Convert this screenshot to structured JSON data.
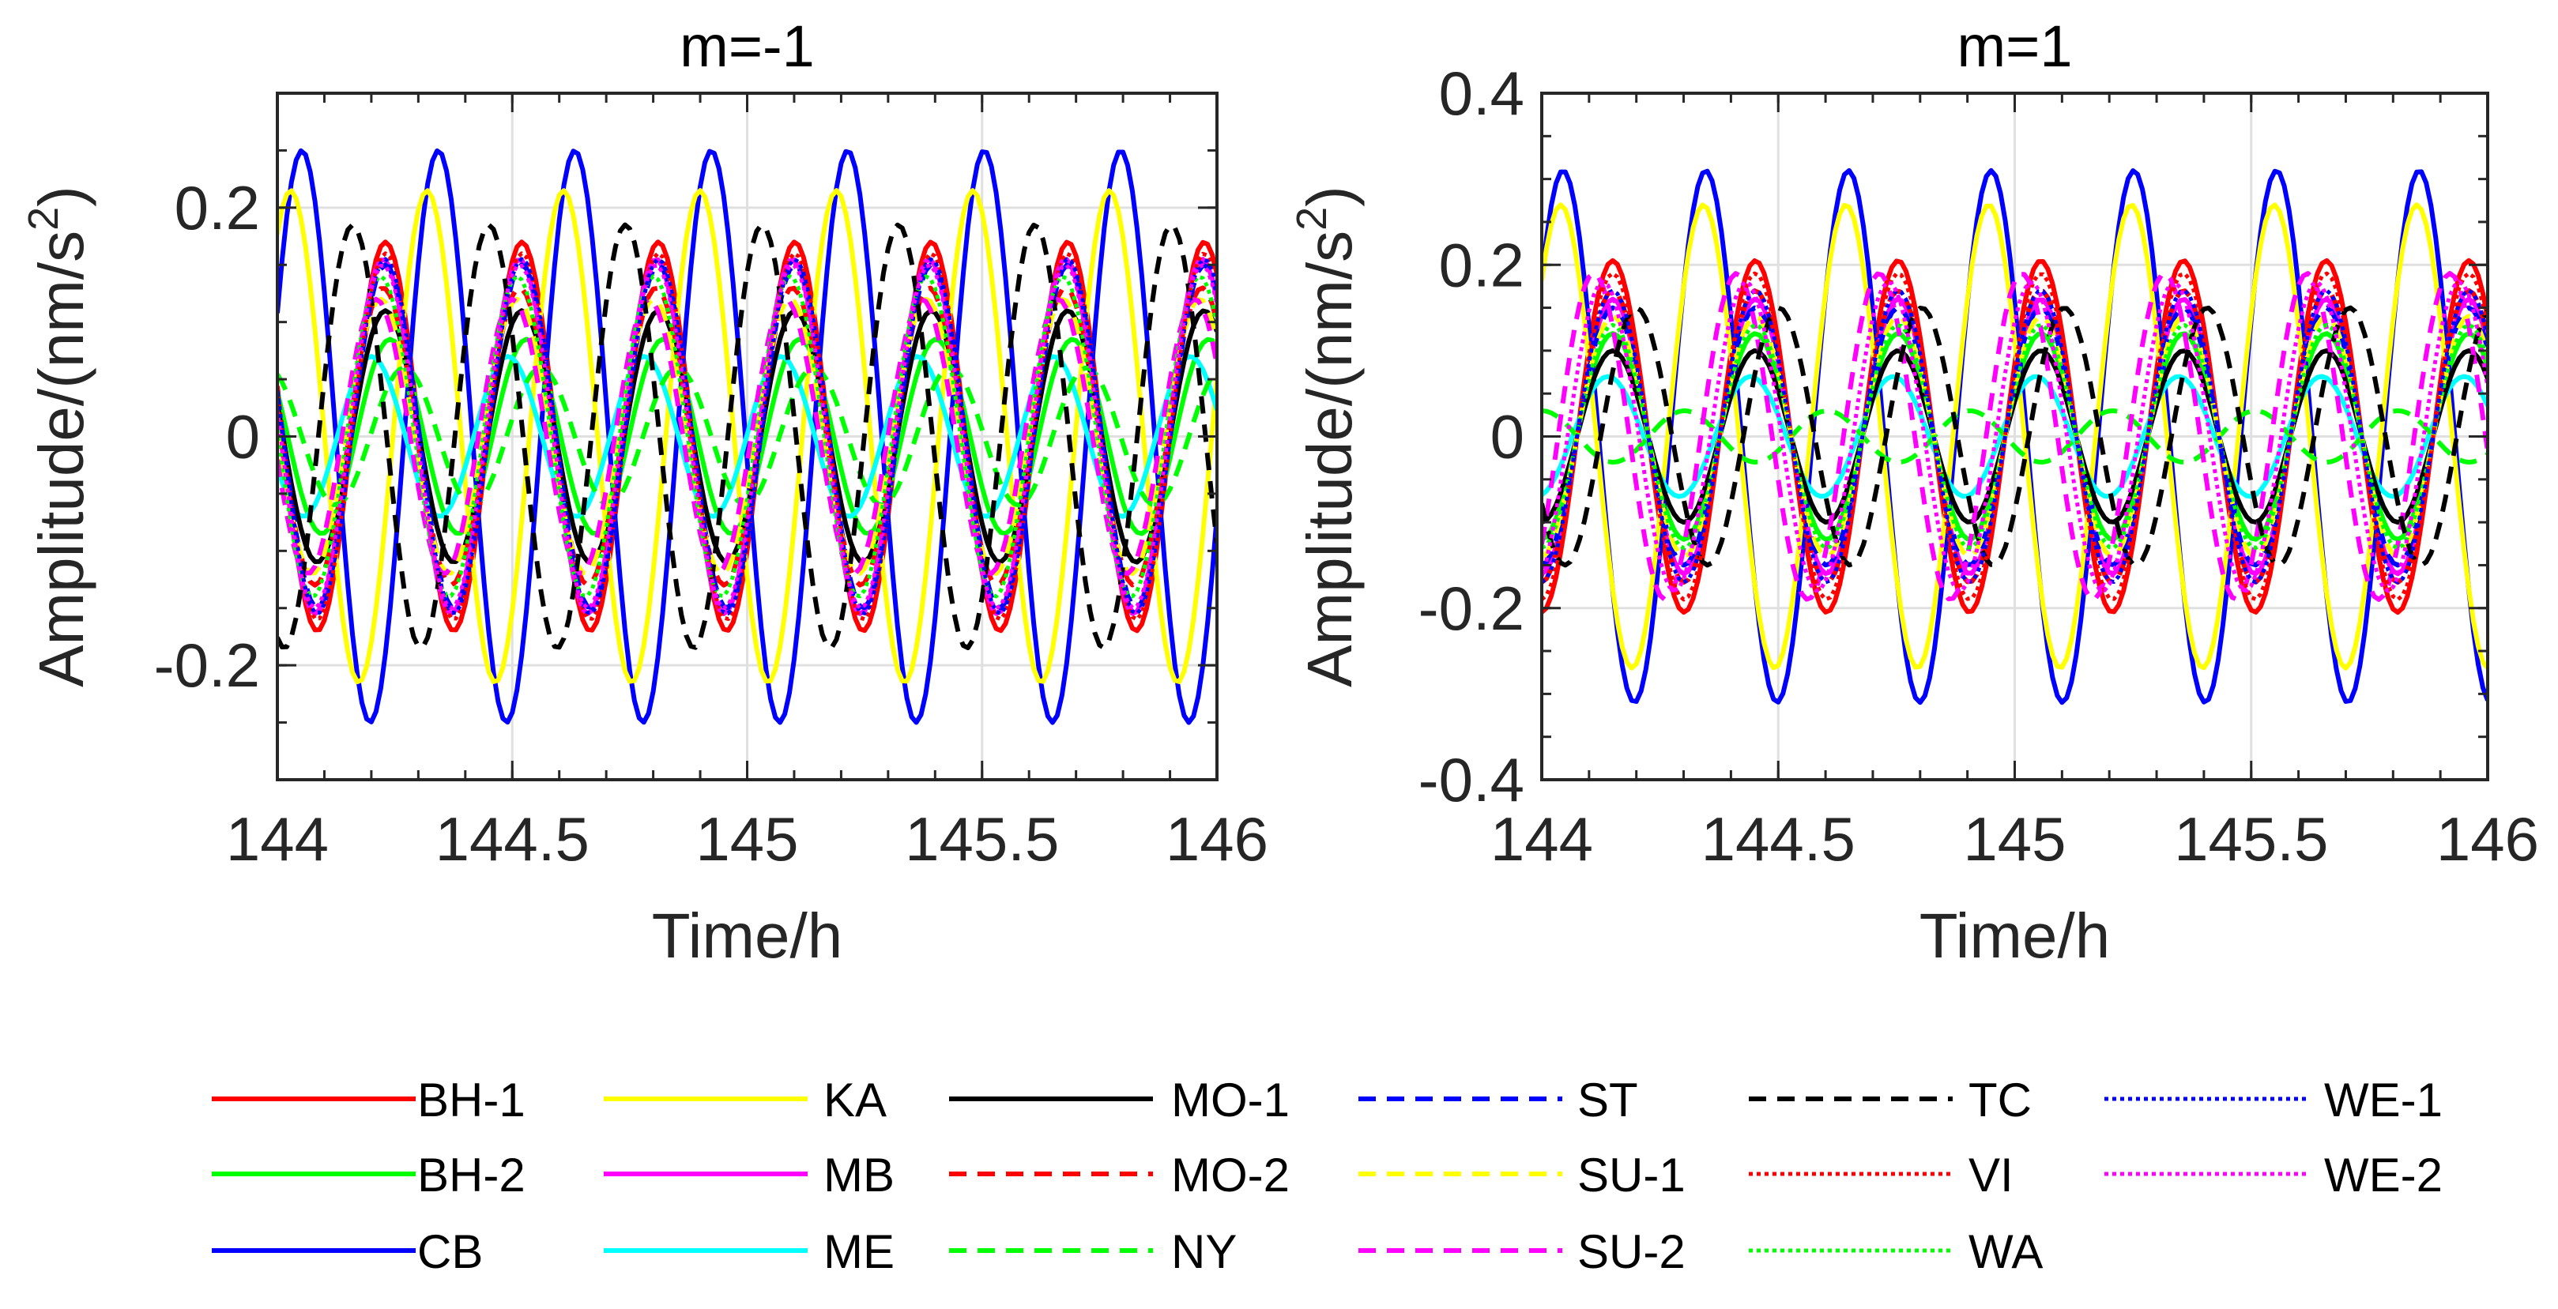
{
  "chart_data": [
    {
      "type": "line",
      "title": "m=-1",
      "xlabel": "Time/h",
      "ylabel": "Amplitude/(nm/s",
      "ylabel_sup": "2",
      "ylabel_end": ")",
      "xlim": [
        144,
        146
      ],
      "ylim": [
        -0.3,
        0.3
      ],
      "xticks": [
        144,
        144.5,
        145,
        145.5,
        146
      ],
      "xtick_labels": [
        "144",
        "144.5",
        "145",
        "145.5",
        "146"
      ],
      "yticks": [
        -0.2,
        0,
        0.2
      ],
      "ytick_labels": [
        "-0.2",
        "0",
        "0.2"
      ],
      "grid": true,
      "period_h": 0.2905,
      "series": [
        {
          "name": "BH-1",
          "amplitude": 0.17,
          "peak_time": 144.23
        },
        {
          "name": "BH-2",
          "amplitude": 0.085,
          "peak_time": 144.24
        },
        {
          "name": "CB",
          "amplitude": 0.25,
          "peak_time": 144.052
        },
        {
          "name": "KA",
          "amplitude": 0.215,
          "peak_time": 144.028
        },
        {
          "name": "MB",
          "amplitude": 0.155,
          "peak_time": 144.225
        },
        {
          "name": "ME",
          "amplitude": 0.07,
          "peak_time": 144.2
        },
        {
          "name": "MO-1",
          "amplitude": 0.11,
          "peak_time": 144.23
        },
        {
          "name": "MO-2",
          "amplitude": 0.13,
          "peak_time": 144.225
        },
        {
          "name": "NY",
          "amplitude": 0.06,
          "peak_time": 144.27
        },
        {
          "name": "ST",
          "amplitude": 0.15,
          "peak_time": 144.23
        },
        {
          "name": "SU-1",
          "amplitude": 0.12,
          "peak_time": 144.22
        },
        {
          "name": "SU-2",
          "amplitude": 0.12,
          "peak_time": 144.21
        },
        {
          "name": "TC",
          "amplitude": 0.185,
          "peak_time": 144.16
        },
        {
          "name": "VI",
          "amplitude": 0.16,
          "peak_time": 144.23
        },
        {
          "name": "WA",
          "amplitude": 0.14,
          "peak_time": 144.22
        },
        {
          "name": "WE-1",
          "amplitude": 0.155,
          "peak_time": 144.23
        },
        {
          "name": "WE-2",
          "amplitude": 0.15,
          "peak_time": 144.225
        }
      ]
    },
    {
      "type": "line",
      "title": "m=1",
      "xlabel": "Time/h",
      "ylabel": "Amplitude/(nm/s",
      "ylabel_sup": "2",
      "ylabel_end": ")",
      "xlim": [
        144,
        146
      ],
      "ylim": [
        -0.4,
        0.4
      ],
      "xticks": [
        144,
        144.5,
        145,
        145.5,
        146
      ],
      "xtick_labels": [
        "144",
        "144.5",
        "145",
        "145.5",
        "146"
      ],
      "yticks": [
        -0.4,
        -0.2,
        0,
        0.2,
        0.4
      ],
      "ytick_labels": [
        "-0.4",
        "-0.2",
        "0",
        "0.2",
        "0.4"
      ],
      "grid": true,
      "period_h": 0.3017,
      "series": [
        {
          "name": "BH-1",
          "amplitude": 0.205,
          "peak_time": 144.15
        },
        {
          "name": "BH-2",
          "amplitude": 0.12,
          "peak_time": 144.15
        },
        {
          "name": "CB",
          "amplitude": 0.31,
          "peak_time": 144.045
        },
        {
          "name": "KA",
          "amplitude": 0.27,
          "peak_time": 144.04
        },
        {
          "name": "MB",
          "amplitude": 0.16,
          "peak_time": 144.15
        },
        {
          "name": "ME",
          "amplitude": 0.07,
          "peak_time": 144.14
        },
        {
          "name": "MO-1",
          "amplitude": 0.1,
          "peak_time": 144.15
        },
        {
          "name": "MO-2",
          "amplitude": 0.17,
          "peak_time": 144.15
        },
        {
          "name": "NY",
          "amplitude": 0.03,
          "peak_time": 144.0
        },
        {
          "name": "ST",
          "amplitude": 0.15,
          "peak_time": 144.15
        },
        {
          "name": "SU-1",
          "amplitude": 0.14,
          "peak_time": 144.15
        },
        {
          "name": "SU-2",
          "amplitude": 0.19,
          "peak_time": 144.11
        },
        {
          "name": "TC",
          "amplitude": 0.15,
          "peak_time": 144.2
        },
        {
          "name": "VI",
          "amplitude": 0.19,
          "peak_time": 144.15
        },
        {
          "name": "WA",
          "amplitude": 0.13,
          "peak_time": 144.15
        },
        {
          "name": "WE-1",
          "amplitude": 0.17,
          "peak_time": 144.15
        },
        {
          "name": "WE-2",
          "amplitude": 0.18,
          "peak_time": 144.13
        }
      ]
    }
  ],
  "legend": {
    "placement": "bottom",
    "entries": [
      {
        "name": "BH-1",
        "color": "#ff0000",
        "style": "solid"
      },
      {
        "name": "BH-2",
        "color": "#00ff00",
        "style": "solid"
      },
      {
        "name": "CB",
        "color": "#0000ff",
        "style": "solid"
      },
      {
        "name": "KA",
        "color": "#ffff00",
        "style": "solid"
      },
      {
        "name": "MB",
        "color": "#ff00ff",
        "style": "solid"
      },
      {
        "name": "ME",
        "color": "#00ffff",
        "style": "solid"
      },
      {
        "name": "MO-1",
        "color": "#000000",
        "style": "solid"
      },
      {
        "name": "MO-2",
        "color": "#ff0000",
        "style": "dashed"
      },
      {
        "name": "NY",
        "color": "#00ff00",
        "style": "dashed"
      },
      {
        "name": "ST",
        "color": "#0000ff",
        "style": "dashed"
      },
      {
        "name": "SU-1",
        "color": "#ffff00",
        "style": "dashed"
      },
      {
        "name": "SU-2",
        "color": "#ff00ff",
        "style": "dashed"
      },
      {
        "name": "TC",
        "color": "#000000",
        "style": "dashed"
      },
      {
        "name": "VI",
        "color": "#ff0000",
        "style": "dotted"
      },
      {
        "name": "WA",
        "color": "#00ff00",
        "style": "dotted"
      },
      {
        "name": "WE-1",
        "color": "#0000ff",
        "style": "dotted"
      },
      {
        "name": "WE-2",
        "color": "#ff00ff",
        "style": "dotted"
      }
    ]
  }
}
